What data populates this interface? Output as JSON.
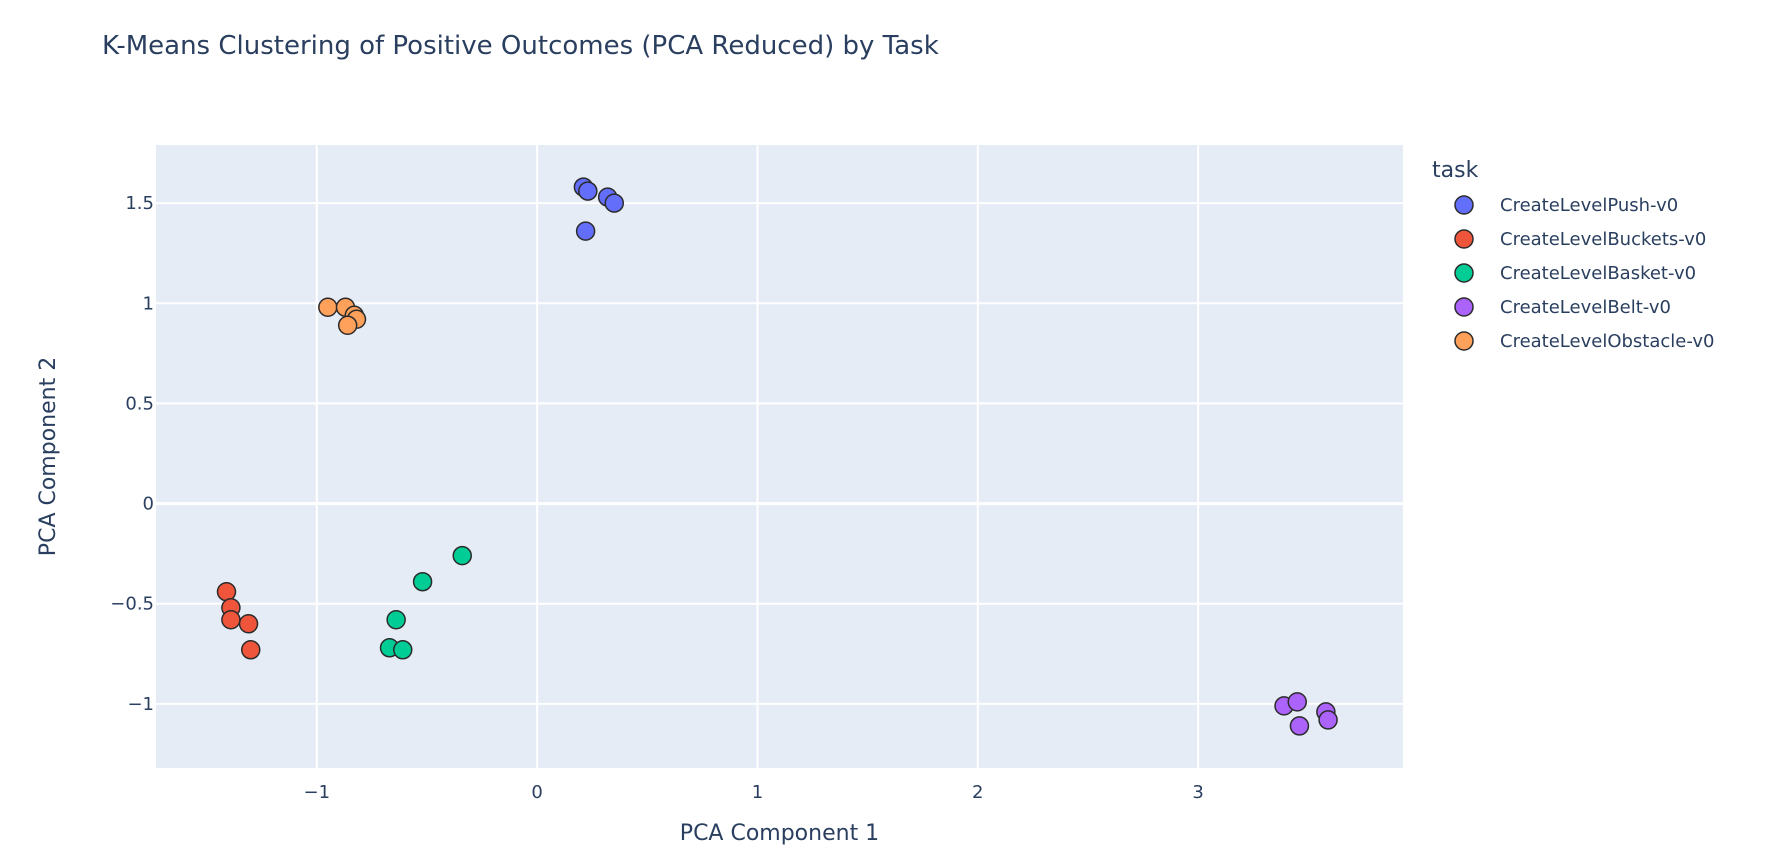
{
  "chart_data": {
    "type": "scatter",
    "title": "K-Means Clustering of Positive Outcomes (PCA Reduced) by Task",
    "xlabel": "PCA Component 1",
    "ylabel": "PCA Component 2",
    "xlim": [
      -1.73,
      3.93
    ],
    "ylim": [
      -1.32,
      1.79
    ],
    "xticks": [
      -1,
      0,
      1,
      2,
      3
    ],
    "xtick_labels": [
      "−1",
      "0",
      "1",
      "2",
      "3"
    ],
    "yticks": [
      -1,
      -0.5,
      0,
      0.5,
      1,
      1.5
    ],
    "ytick_labels": [
      "−1",
      "−0.5",
      "0",
      "0.5",
      "1",
      "1.5"
    ],
    "legend_title": "task",
    "legend_position": "top-right outside",
    "plot_bg": "#e5ecf6",
    "grid": true,
    "series": [
      {
        "name": "CreateLevelPush-v0",
        "color": "#636efa",
        "points": [
          [
            0.21,
            1.58
          ],
          [
            0.23,
            1.56
          ],
          [
            0.32,
            1.53
          ],
          [
            0.35,
            1.5
          ],
          [
            0.22,
            1.36
          ]
        ]
      },
      {
        "name": "CreateLevelBuckets-v0",
        "color": "#ef553b",
        "points": [
          [
            -1.41,
            -0.44
          ],
          [
            -1.39,
            -0.52
          ],
          [
            -1.39,
            -0.58
          ],
          [
            -1.31,
            -0.6
          ],
          [
            -1.3,
            -0.73
          ]
        ]
      },
      {
        "name": "CreateLevelBasket-v0",
        "color": "#00cc96",
        "points": [
          [
            -0.34,
            -0.26
          ],
          [
            -0.52,
            -0.39
          ],
          [
            -0.64,
            -0.58
          ],
          [
            -0.67,
            -0.72
          ],
          [
            -0.61,
            -0.73
          ]
        ]
      },
      {
        "name": "CreateLevelBelt-v0",
        "color": "#ab63fa",
        "points": [
          [
            3.39,
            -1.01
          ],
          [
            3.45,
            -0.99
          ],
          [
            3.58,
            -1.04
          ],
          [
            3.46,
            -1.11
          ],
          [
            3.59,
            -1.08
          ]
        ]
      },
      {
        "name": "CreateLevelObstacle-v0",
        "color": "#ffa15a",
        "points": [
          [
            -0.95,
            0.98
          ],
          [
            -0.87,
            0.98
          ],
          [
            -0.83,
            0.94
          ],
          [
            -0.82,
            0.92
          ],
          [
            -0.86,
            0.89
          ]
        ]
      }
    ]
  }
}
